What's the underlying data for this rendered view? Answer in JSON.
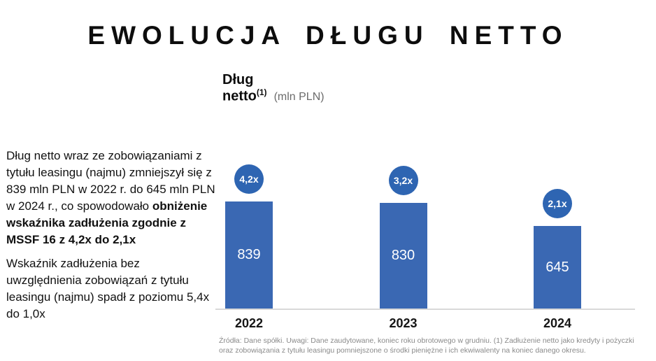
{
  "slide": {
    "title": "EWOLUCJA DŁUGU NETTO"
  },
  "chart_header": {
    "title_line1": "Dług",
    "title_line2": "netto",
    "title_superscript": "(1)",
    "unit_label": "(mln PLN)"
  },
  "narrative": {
    "paragraph1_regular": "Dług netto wraz ze zobowiązaniami z tytułu leasingu (najmu) zmniejszył się z 839 mln PLN w 2022 r. do 645 mln PLN w 2024 r., co spowodowało ",
    "paragraph1_bold": "obniżenie wskaźnika zadłużenia zgodnie z MSSF 16 z 4,2x do 2,1x",
    "paragraph2": "Wskaźnik zadłużenia bez uwzględnienia zobowiązań z tytułu leasingu (najmu) spadł z poziomu 5,4x do 1,0x"
  },
  "footnote": "Źródła: Dane spółki. Uwagi: Dane zaudytowane, koniec roku obrotowego w grudniu. (1) Zadłużenie netto jako kredyty i pożyczki oraz zobowiązania z tytułu leasingu pomniejszone o środki pieniężne i ich ekwiwalenty na koniec danego okresu.",
  "colors": {
    "bar_blue": "#3A68B3",
    "badge_blue": "#2E65B2",
    "axis_line_gray": "#D9D9D9"
  },
  "chart_data": {
    "type": "bar",
    "title": "Dług netto (mln PLN)",
    "categories": [
      "2022",
      "2023",
      "2024"
    ],
    "values": [
      839,
      830,
      645
    ],
    "badge_labels": [
      "4,2x",
      "3,2x",
      "2,1x"
    ],
    "value_labels_inside_bars": true,
    "xlabel": "",
    "ylabel": "",
    "ylim": [
      0,
      920
    ],
    "grid": false,
    "legend": false,
    "notes": "Badge circles above each bar show debt ratio per MSSF 16 for that year"
  }
}
